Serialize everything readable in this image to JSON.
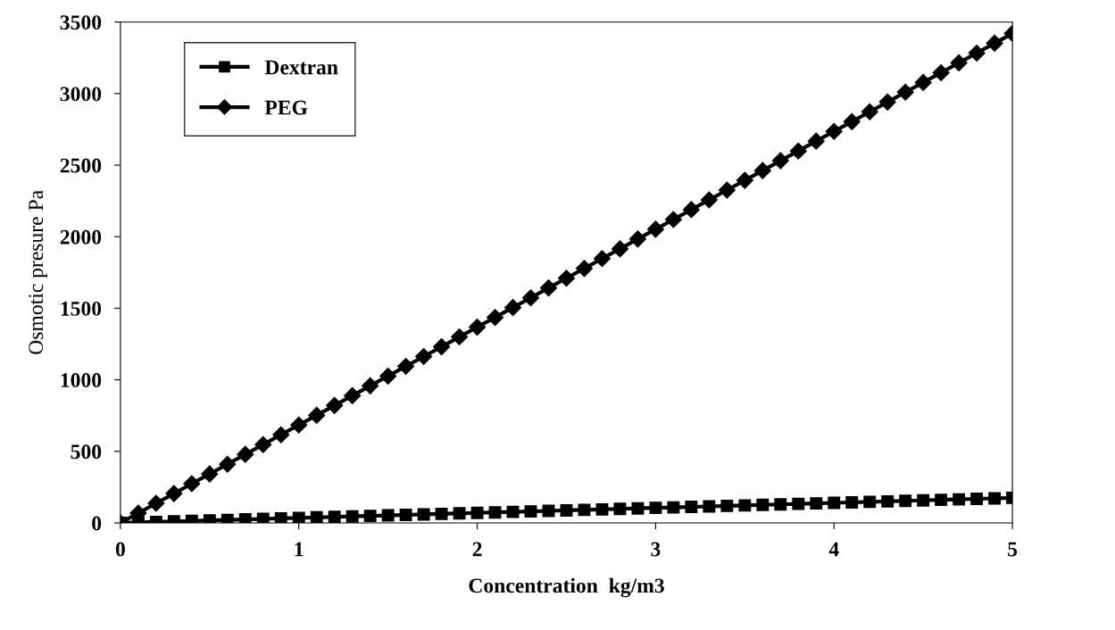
{
  "chart_data": {
    "type": "line",
    "xlabel": "Concentration  kg/m3",
    "ylabel": "Osmotic presure Pa",
    "x": [
      0,
      0.1,
      0.2,
      0.3,
      0.4,
      0.5,
      0.6,
      0.7,
      0.8,
      0.9,
      1,
      1.1,
      1.2,
      1.3,
      1.4,
      1.5,
      1.6,
      1.7,
      1.8,
      1.9,
      2,
      2.1,
      2.2,
      2.3,
      2.4,
      2.5,
      2.6,
      2.7,
      2.8,
      2.9,
      3,
      3.1,
      3.2,
      3.3,
      3.4,
      3.5,
      3.6,
      3.7,
      3.8,
      3.9,
      4,
      4.1,
      4.2,
      4.3,
      4.4,
      4.5,
      4.6,
      4.7,
      4.8,
      4.9,
      5
    ],
    "series": [
      {
        "name": "Dextran",
        "color": "#000000",
        "marker": "square",
        "values": [
          0,
          3.5,
          7,
          10.5,
          14,
          17.5,
          21,
          24.5,
          28,
          31.5,
          35,
          38.5,
          42,
          45.5,
          49,
          52.5,
          56,
          59.5,
          63,
          66.5,
          70,
          73.5,
          77,
          80.5,
          84,
          87.5,
          91,
          94.5,
          98,
          101.5,
          105,
          108.5,
          112,
          115.5,
          119,
          122.5,
          126,
          129.5,
          133,
          136.5,
          140,
          143.5,
          147,
          150.5,
          154,
          157.5,
          161,
          164.5,
          168,
          171.5,
          175
        ]
      },
      {
        "name": "PEG",
        "color": "#000000",
        "marker": "diamond",
        "values": [
          0,
          68,
          137,
          205,
          274,
          342,
          410,
          479,
          547,
          616,
          684,
          752,
          821,
          889,
          958,
          1026,
          1094,
          1163,
          1231,
          1300,
          1368,
          1436,
          1505,
          1573,
          1642,
          1710,
          1778,
          1847,
          1915,
          1984,
          2052,
          2120,
          2189,
          2257,
          2326,
          2394,
          2462,
          2531,
          2599,
          2668,
          2736,
          2804,
          2873,
          2941,
          3010,
          3078,
          3146,
          3215,
          3283,
          3352,
          3420
        ]
      }
    ],
    "xlim": [
      0,
      5
    ],
    "xticks": [
      0,
      1,
      2,
      3,
      4,
      5
    ],
    "ylim": [
      0,
      3500
    ],
    "yticks": [
      0,
      500,
      1000,
      1500,
      2000,
      2500,
      3000,
      3500
    ],
    "grid": false,
    "legend": "top left",
    "line_style": "solid"
  }
}
